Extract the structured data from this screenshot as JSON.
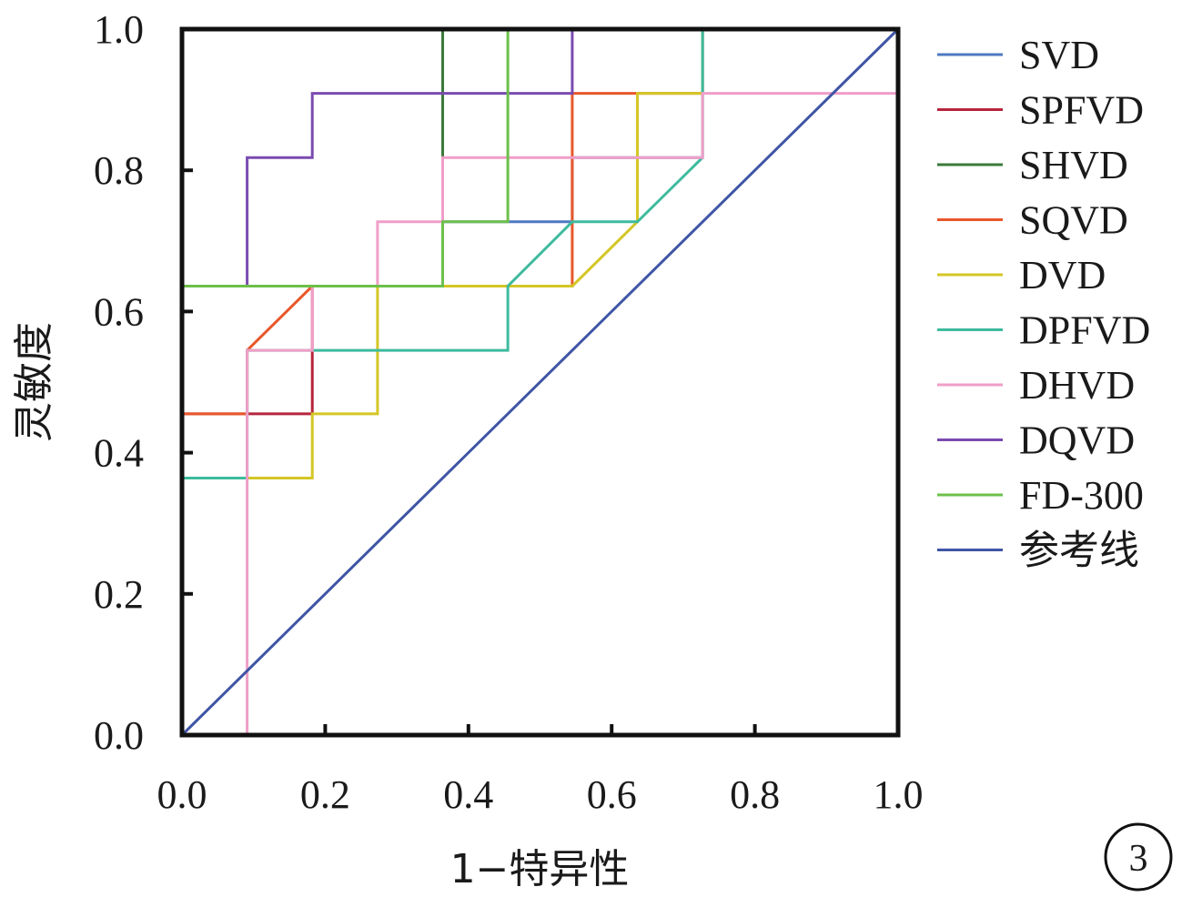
{
  "chart_data": {
    "type": "line",
    "xlabel": "1−特异性",
    "ylabel": "灵敏度",
    "xlim": [
      0,
      1
    ],
    "ylim": [
      0,
      1
    ],
    "x_ticks": [
      "0.0",
      "0.2",
      "0.4",
      "0.6",
      "0.8",
      "1.0"
    ],
    "y_ticks": [
      "0.0",
      "0.2",
      "0.4",
      "0.6",
      "0.8",
      "1.0"
    ],
    "grid": false,
    "legend_position": "right",
    "panel_label": "3",
    "series": [
      {
        "name": "SVD",
        "color": "#4e79c2",
        "x": [
          0,
          0,
          0.091,
          0.091,
          0.364,
          0.364,
          0.545,
          0.545,
          0.727,
          0.727,
          1,
          1
        ],
        "y": [
          0,
          0.636,
          0.636,
          0.636,
          0.636,
          0.727,
          0.727,
          0.818,
          0.818,
          1,
          1,
          1
        ]
      },
      {
        "name": "SPFVD",
        "color": "#b5253c",
        "x": [
          0,
          0,
          0.182,
          0.182,
          0.364,
          0.364,
          1
        ],
        "y": [
          0,
          0.455,
          0.455,
          0.636,
          0.636,
          1,
          1
        ]
      },
      {
        "name": "SHVD",
        "color": "#3a7a3a",
        "x": [
          0,
          0,
          0.364,
          0.364,
          1
        ],
        "y": [
          0,
          0.636,
          0.636,
          1,
          1
        ]
      },
      {
        "name": "SQVD",
        "color": "#e8572a",
        "x": [
          0,
          0,
          0.091,
          0.091,
          0.182,
          0.545,
          0.545,
          0.727,
          0.727,
          1
        ],
        "y": [
          0,
          0.455,
          0.455,
          0.545,
          0.636,
          0.636,
          0.909,
          0.909,
          1,
          1
        ]
      },
      {
        "name": "DVD",
        "color": "#d4c626",
        "x": [
          0,
          0,
          0.182,
          0.182,
          0.273,
          0.273,
          0.545,
          0.636,
          0.636,
          0.727,
          0.727,
          1
        ],
        "y": [
          0,
          0.364,
          0.364,
          0.455,
          0.455,
          0.636,
          0.636,
          0.727,
          0.909,
          0.909,
          1,
          1
        ]
      },
      {
        "name": "DPFVD",
        "color": "#3dbb9e",
        "x": [
          0,
          0,
          0.091,
          0.091,
          0.455,
          0.455,
          0.545,
          0.636,
          0.727,
          0.727,
          1
        ],
        "y": [
          0,
          0.364,
          0.364,
          0.545,
          0.545,
          0.636,
          0.727,
          0.727,
          0.818,
          1,
          1
        ]
      },
      {
        "name": "DHVD",
        "color": "#f09ec8",
        "x": [
          0,
          0.091,
          0.091,
          0.182,
          0.182,
          0.273,
          0.273,
          0.364,
          0.364,
          0.727,
          0.727,
          1,
          1
        ],
        "y": [
          0,
          0,
          0.545,
          0.545,
          0.636,
          0.636,
          0.727,
          0.727,
          0.818,
          0.818,
          0.909,
          0.909,
          1
        ]
      },
      {
        "name": "DQVD",
        "color": "#7a4bb0",
        "x": [
          0,
          0,
          0.091,
          0.091,
          0.182,
          0.182,
          0.545,
          0.545,
          1
        ],
        "y": [
          0,
          0.636,
          0.636,
          0.818,
          0.818,
          0.909,
          0.909,
          1,
          1
        ]
      },
      {
        "name": "FD-300",
        "color": "#6cc04a",
        "x": [
          0,
          0,
          0.364,
          0.364,
          0.455,
          0.455,
          1
        ],
        "y": [
          0,
          0.636,
          0.636,
          0.727,
          0.727,
          1,
          1
        ]
      },
      {
        "name": "参考线",
        "color": "#3f55a5",
        "x": [
          0,
          1
        ],
        "y": [
          0,
          1
        ]
      }
    ]
  }
}
